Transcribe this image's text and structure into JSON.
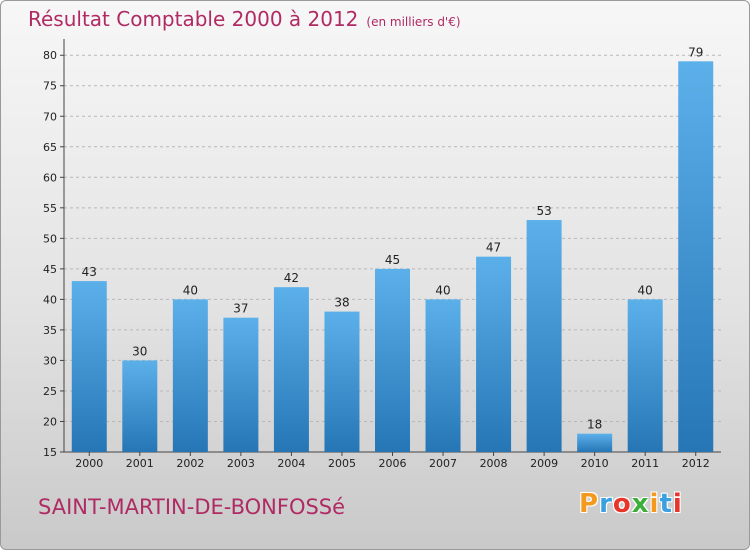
{
  "title": "Résultat Comptable 2000 à 2012",
  "subtitle": "(en milliers d'€)",
  "town": "SAINT-MARTIN-DE-BONFOSSé",
  "logo": {
    "letters": [
      "P",
      "r",
      "o",
      "x",
      "i",
      "t",
      "i"
    ],
    "colors": [
      "#f39a1e",
      "#3aa0e0",
      "#e8352a",
      "#3cae3a",
      "#f39a1e",
      "#3aa0e0",
      "#e8352a"
    ]
  },
  "colors": {
    "bar_light": "#5aaee8",
    "bar_dark": "#2a78b8",
    "title": "#b02a63"
  },
  "chart_data": {
    "type": "bar",
    "categories": [
      "2000",
      "2001",
      "2002",
      "2003",
      "2004",
      "2005",
      "2006",
      "2007",
      "2008",
      "2009",
      "2010",
      "2011",
      "2012"
    ],
    "values": [
      43,
      30,
      40,
      37,
      42,
      38,
      45,
      40,
      47,
      53,
      18,
      40,
      79
    ],
    "yticks": [
      15,
      20,
      25,
      30,
      35,
      40,
      45,
      50,
      55,
      60,
      65,
      70,
      75,
      80
    ],
    "ylim": [
      15,
      82
    ],
    "grid": true,
    "xlabel": "",
    "ylabel": ""
  }
}
